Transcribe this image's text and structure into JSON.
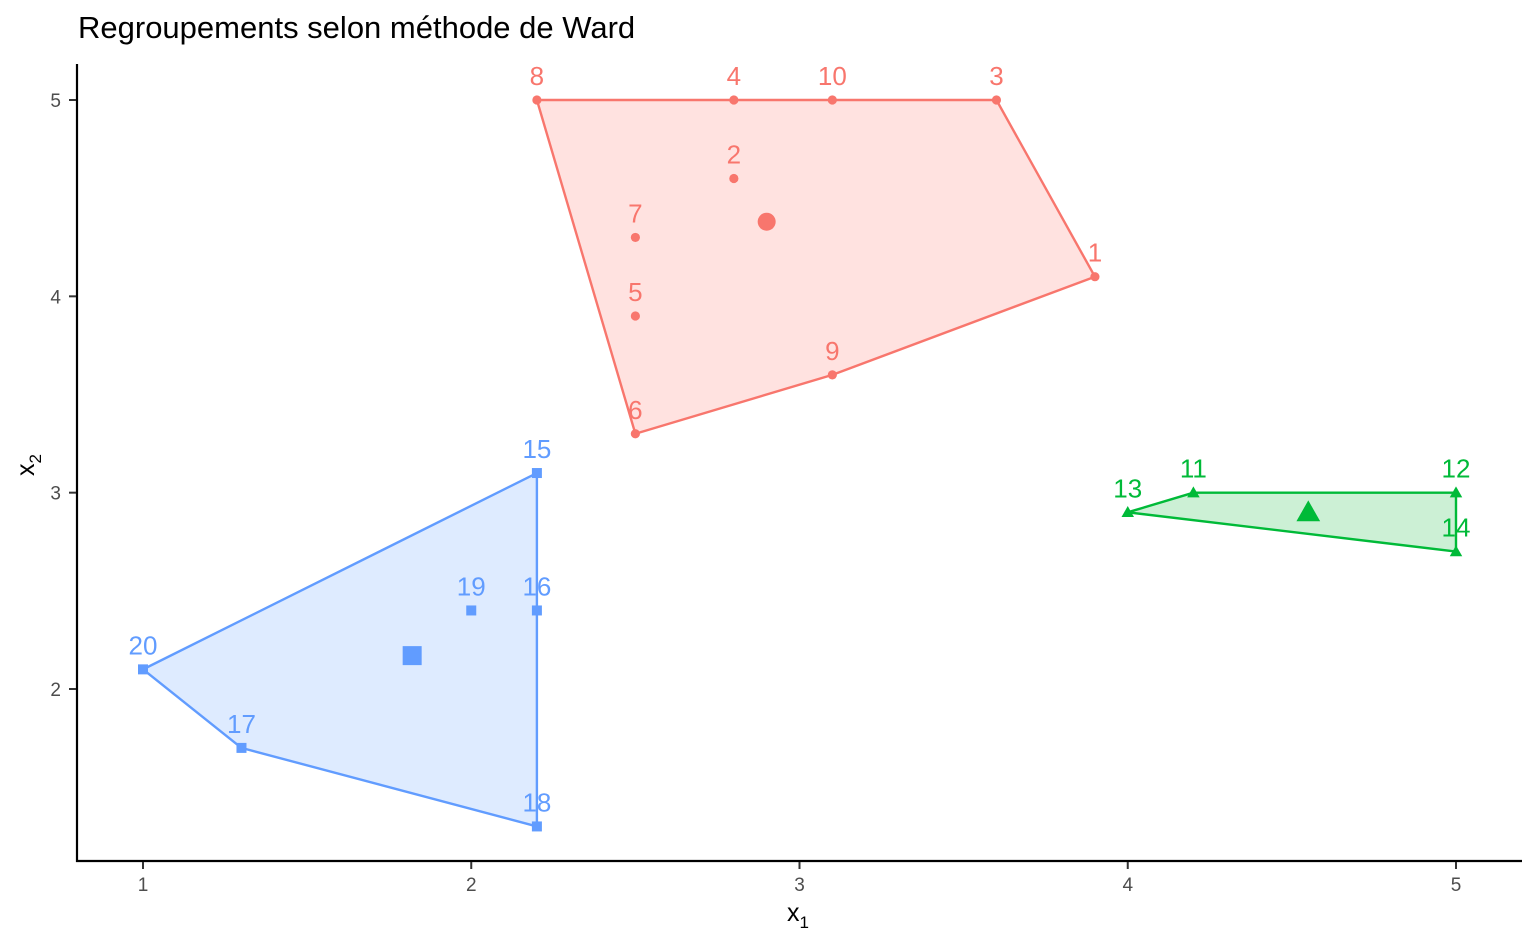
{
  "chart_data": {
    "type": "scatter",
    "title": "Regroupements selon méthode de Ward",
    "xlabel": {
      "base": "x",
      "sub": "1"
    },
    "ylabel": {
      "base": "x",
      "sub": "2"
    },
    "xlim": [
      0.8,
      5.2
    ],
    "ylim": [
      1.12,
      5.18
    ],
    "x_ticks": [
      1,
      2,
      3,
      4,
      5
    ],
    "y_ticks": [
      2,
      3,
      4,
      5
    ],
    "grid": false,
    "clusters": [
      {
        "color": "#F8766D",
        "fill": "#FFE2E0",
        "shape": "circle",
        "points": [
          {
            "label": "1",
            "x": 3.9,
            "y": 4.1
          },
          {
            "label": "2",
            "x": 2.8,
            "y": 4.6
          },
          {
            "label": "3",
            "x": 3.6,
            "y": 5.0
          },
          {
            "label": "4",
            "x": 2.8,
            "y": 5.0
          },
          {
            "label": "5",
            "x": 2.5,
            "y": 3.9
          },
          {
            "label": "6",
            "x": 2.5,
            "y": 3.3
          },
          {
            "label": "7",
            "x": 2.5,
            "y": 4.3
          },
          {
            "label": "8",
            "x": 2.2,
            "y": 5.0
          },
          {
            "label": "9",
            "x": 3.1,
            "y": 3.6
          },
          {
            "label": "10",
            "x": 3.1,
            "y": 5.0
          }
        ],
        "hull": [
          "8",
          "3",
          "1",
          "9",
          "6"
        ],
        "center": {
          "x": 2.9,
          "y": 4.38
        }
      },
      {
        "color": "#00BA38",
        "fill": "#CCF0D5",
        "shape": "triangle",
        "points": [
          {
            "label": "11",
            "x": 4.2,
            "y": 3.0
          },
          {
            "label": "12",
            "x": 5.0,
            "y": 3.0
          },
          {
            "label": "13",
            "x": 4.0,
            "y": 2.9
          },
          {
            "label": "14",
            "x": 5.0,
            "y": 2.7
          }
        ],
        "hull": [
          "13",
          "11",
          "12",
          "14"
        ],
        "center": {
          "x": 4.55,
          "y": 2.9
        }
      },
      {
        "color": "#619CFF",
        "fill": "#DEEBFF",
        "shape": "square",
        "points": [
          {
            "label": "15",
            "x": 2.2,
            "y": 3.1
          },
          {
            "label": "16",
            "x": 2.2,
            "y": 2.4
          },
          {
            "label": "17",
            "x": 1.3,
            "y": 1.7
          },
          {
            "label": "18",
            "x": 2.2,
            "y": 1.3
          },
          {
            "label": "19",
            "x": 2.0,
            "y": 2.4
          },
          {
            "label": "20",
            "x": 1.0,
            "y": 2.1
          }
        ],
        "hull": [
          "15",
          "18",
          "17",
          "20"
        ],
        "center": {
          "x": 1.82,
          "y": 2.17
        }
      }
    ]
  }
}
